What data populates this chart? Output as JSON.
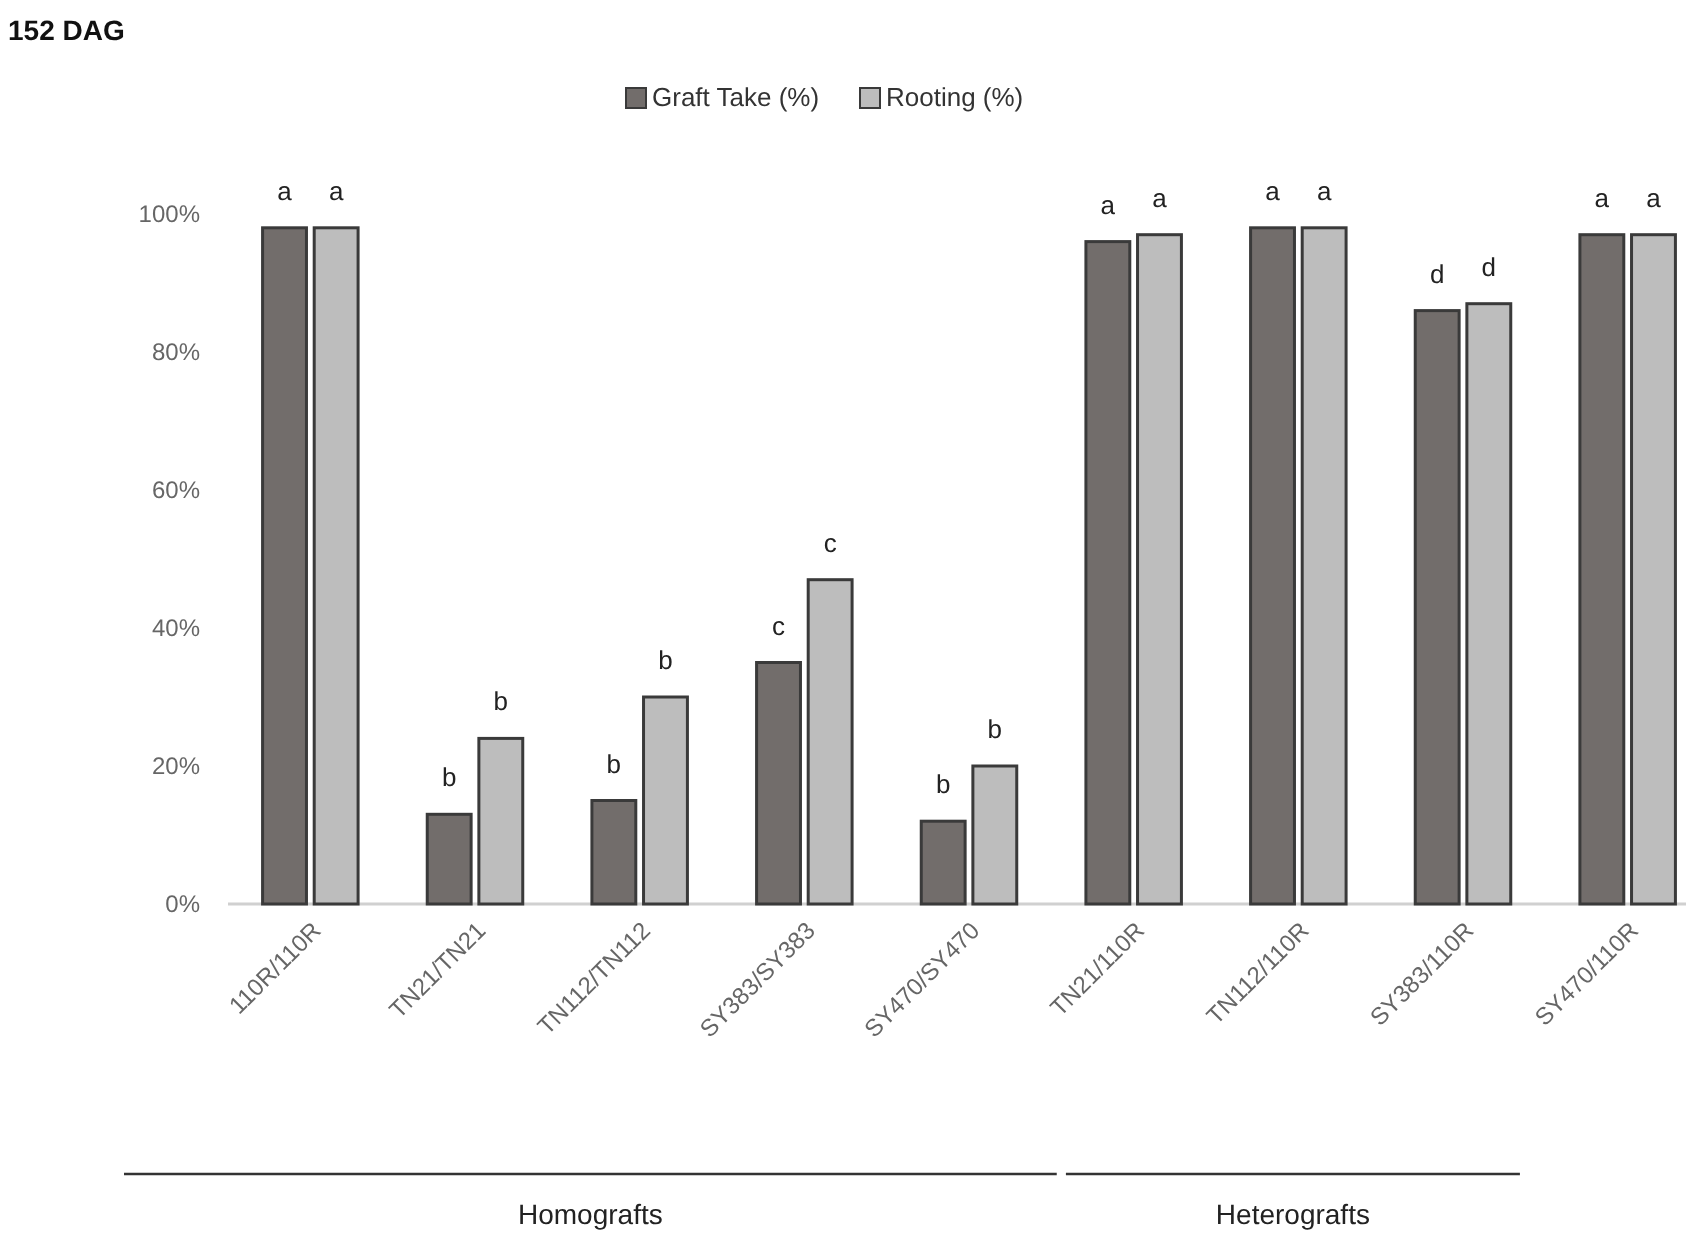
{
  "chart_data": {
    "type": "bar",
    "title": "152 DAG",
    "categories": [
      "110R/110R",
      "TN21/TN21",
      "TN112/TN112",
      "SY383/SY383",
      "SY470/SY470",
      "TN21/110R",
      "TN112/110R",
      "SY383/110R",
      "SY470/110R"
    ],
    "series": [
      {
        "name": "Graft Take (%)",
        "color": "#726d6b",
        "values": [
          98,
          13,
          15,
          35,
          12,
          96,
          98,
          86,
          97
        ],
        "value_labels": [
          "a",
          "b",
          "b",
          "c",
          "b",
          "a",
          "a",
          "d",
          "a"
        ]
      },
      {
        "name": "Rooting (%)",
        "color": "#bdbdbd",
        "values": [
          98,
          24,
          30,
          47,
          20,
          97,
          98,
          87,
          97
        ],
        "value_labels": [
          "a",
          "b",
          "b",
          "c",
          "b",
          "a",
          "a",
          "d",
          "a"
        ]
      }
    ],
    "ylim": [
      0,
      100
    ],
    "yticks": [
      {
        "value": 0,
        "label": "0%"
      },
      {
        "value": 20,
        "label": "20%"
      },
      {
        "value": 40,
        "label": "40%"
      },
      {
        "value": 60,
        "label": "60%"
      },
      {
        "value": 80,
        "label": "80%"
      },
      {
        "value": 100,
        "label": "100%"
      }
    ],
    "grid": false,
    "legend": "top",
    "annotations": [
      "Homografts",
      "Heterografts"
    ]
  }
}
